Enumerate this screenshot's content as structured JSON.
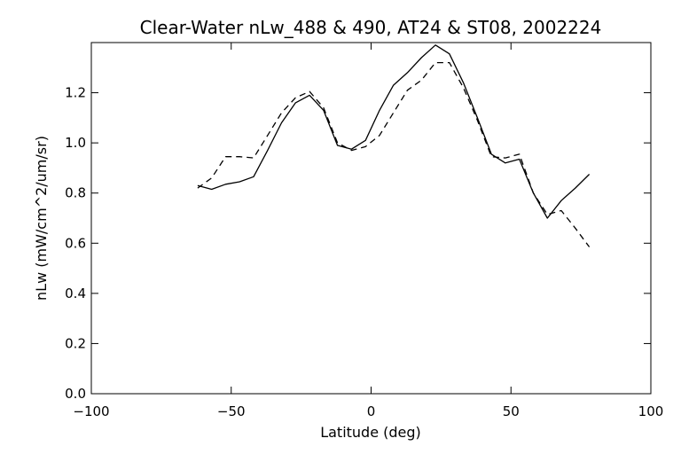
{
  "chart_data": {
    "type": "line",
    "title": "Clear-Water nLw_488 & 490, AT24 & ST08, 2002224",
    "xlabel": "Latitude (deg)",
    "ylabel": "nLw (mW/cm^2/um/sr)",
    "xlim": [
      -100,
      100
    ],
    "ylim": [
      0.0,
      1.4
    ],
    "xticks": [
      -100,
      -50,
      0,
      50,
      100
    ],
    "yticks": [
      0.0,
      0.2,
      0.4,
      0.6,
      0.8,
      1.0,
      1.2
    ],
    "xtick_labels": [
      "−100",
      "−50",
      "0",
      "50",
      "100"
    ],
    "ytick_labels": [
      "0.0",
      "0.2",
      "0.4",
      "0.6",
      "0.8",
      "1.0",
      "1.2"
    ],
    "grid": false,
    "legend": "none",
    "series": [
      {
        "line_style": "solid",
        "color": "#000000",
        "x": [
          -62,
          -57,
          -52,
          -47,
          -42,
          -37,
          -32,
          -27,
          -22,
          -17,
          -12,
          -7,
          -2,
          3,
          8,
          13,
          18,
          23,
          28,
          33,
          38,
          43,
          48,
          53,
          58,
          63,
          68,
          73,
          78
        ],
        "y": [
          0.83,
          0.815,
          0.835,
          0.845,
          0.865,
          0.97,
          1.08,
          1.16,
          1.19,
          1.13,
          0.99,
          0.975,
          1.01,
          1.13,
          1.23,
          1.28,
          1.34,
          1.39,
          1.355,
          1.24,
          1.1,
          0.955,
          0.92,
          0.935,
          0.8,
          0.7,
          0.77,
          0.82,
          0.875
        ]
      },
      {
        "line_style": "dashed",
        "color": "#000000",
        "x": [
          -62,
          -57,
          -52,
          -47,
          -42,
          -37,
          -32,
          -27,
          -22,
          -17,
          -12,
          -7,
          -2,
          3,
          8,
          13,
          18,
          23,
          28,
          33,
          38,
          43,
          48,
          53,
          58,
          63,
          68,
          73,
          78
        ],
        "y": [
          0.82,
          0.86,
          0.945,
          0.945,
          0.94,
          1.03,
          1.12,
          1.18,
          1.205,
          1.14,
          1.0,
          0.97,
          0.985,
          1.03,
          1.12,
          1.21,
          1.25,
          1.32,
          1.32,
          1.22,
          1.09,
          0.945,
          0.94,
          0.955,
          0.8,
          0.715,
          0.73,
          0.66,
          0.585
        ]
      }
    ]
  }
}
